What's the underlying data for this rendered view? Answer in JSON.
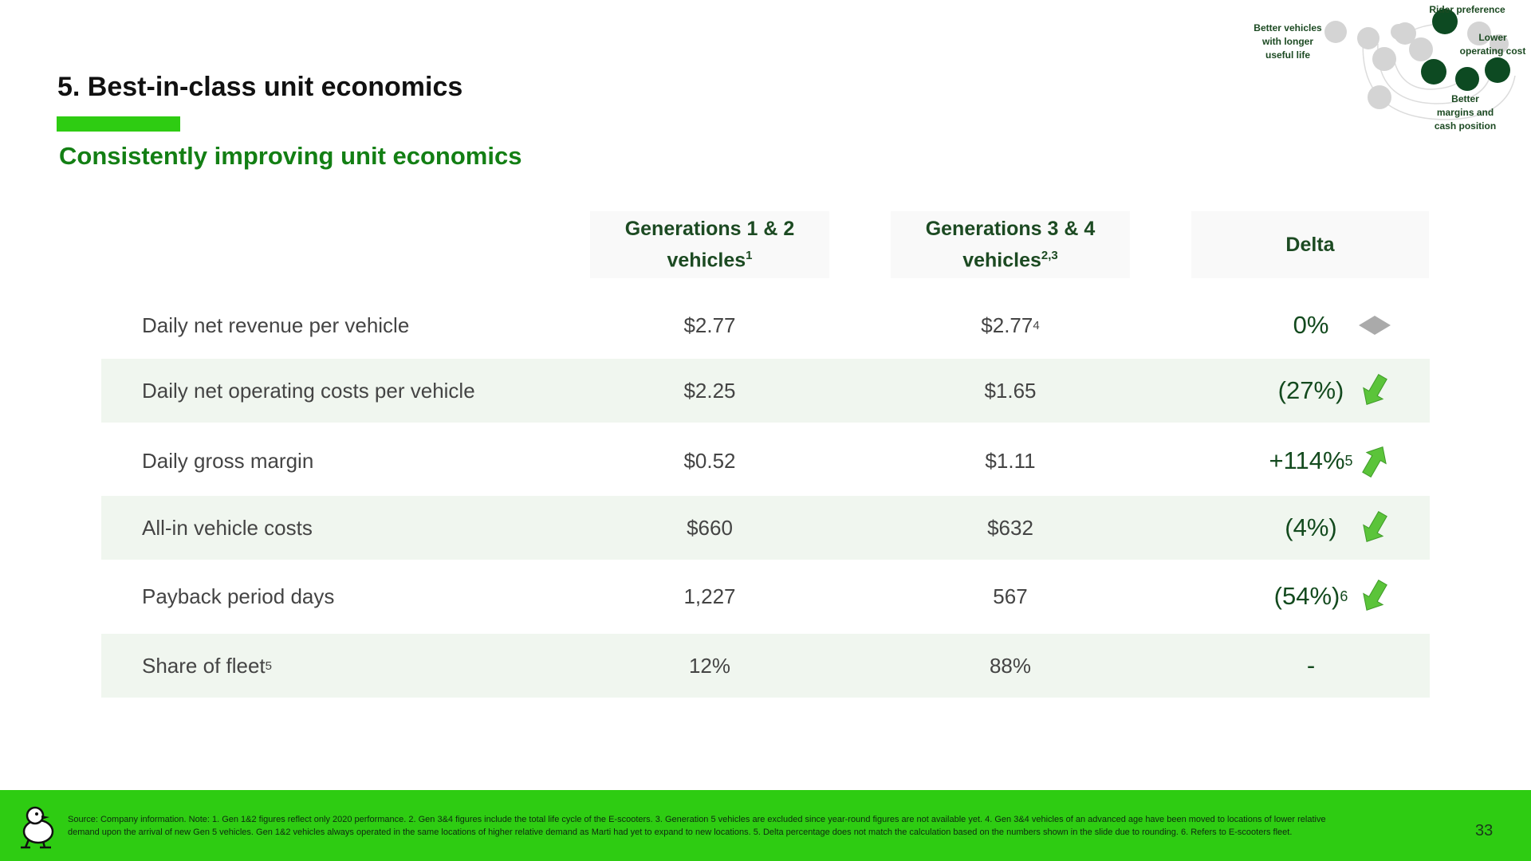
{
  "title": "5. Best-in-class unit economics",
  "subtitle": "Consistently improving unit economics",
  "diagram": {
    "labels": {
      "rider_preference": "Rider preference",
      "better_vehicles": [
        "Better vehicles",
        "with longer",
        "useful life"
      ],
      "lower_cost": [
        "Lower",
        "operating cost"
      ],
      "better_margins": [
        "Better",
        "margins and",
        "cash position"
      ]
    },
    "colors": {
      "dark": "#0d4a22",
      "light": "#d4d4d4"
    }
  },
  "columns": {
    "gen12": {
      "text": "Generations 1 & 2",
      "text2": "vehicles",
      "sup": "1"
    },
    "gen34": {
      "text": "Generations 3 & 4",
      "text2": "vehicles",
      "sup": "2,3"
    },
    "delta": {
      "text": "Delta"
    }
  },
  "rows": [
    {
      "label": "Daily net revenue per vehicle",
      "label_sup": "",
      "gen12": "$2.77",
      "gen34": "$2.77",
      "gen34_sup": "4",
      "delta": "0%",
      "delta_sup": "",
      "icon": "diamond"
    },
    {
      "label": "Daily net operating costs per vehicle",
      "label_sup": "",
      "gen12": "$2.25",
      "gen34": "$1.65",
      "gen34_sup": "",
      "delta": "(27%)",
      "delta_sup": "",
      "icon": "down"
    },
    {
      "label": "Daily gross margin",
      "label_sup": "",
      "gen12": "$0.52",
      "gen34": "$1.11",
      "gen34_sup": "",
      "delta": "+114%",
      "delta_sup": "5",
      "icon": "up"
    },
    {
      "label": "All-in vehicle costs",
      "label_sup": "",
      "gen12": "$660",
      "gen34": "$632",
      "gen34_sup": "",
      "delta": "(4%)",
      "delta_sup": "",
      "icon": "down"
    },
    {
      "label": "Payback period days",
      "label_sup": "",
      "gen12": "1,227",
      "gen34": "567",
      "gen34_sup": "",
      "delta": "(54%)",
      "delta_sup": "6",
      "icon": "down"
    },
    {
      "label": "Share of fleet",
      "label_sup": "5",
      "gen12": "12%",
      "gen34": "88%",
      "gen34_sup": "",
      "delta": "-",
      "delta_sup": "",
      "icon": ""
    }
  ],
  "footer": {
    "source": "Source: Company information. Note: 1. Gen 1&2 figures reflect only 2020 performance. 2. Gen 3&4 figures include the total life cycle of the E-scooters. 3. Generation 5 vehicles are excluded since year-round figures are not available yet. 4. Gen 3&4 vehicles of an advanced age have been moved to locations of lower relative demand upon the arrival of new Gen 5 vehicles. Gen 1&2 vehicles always operated in the same locations of higher relative demand as Marti had yet to expand to new locations. 5. Delta percentage does not match the calculation based on the numbers shown in the slide due to rounding. 6. Refers to E-scooters fleet.",
    "page_number": "33"
  },
  "colors": {
    "accent_green": "#2ecc12",
    "subtitle_green": "#137f14",
    "arrow_green": "#5bc43a",
    "diamond_gray": "#aaaaaa"
  }
}
